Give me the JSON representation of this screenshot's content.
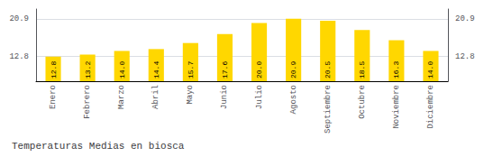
{
  "chart_data": {
    "type": "bar",
    "title": "Temperaturas Medias en biosca",
    "categories": [
      "Enero",
      "Febrero",
      "Marzo",
      "Abril",
      "Mayo",
      "Junio",
      "Julio",
      "Agosto",
      "Septiembre",
      "Octubre",
      "Noviembre",
      "Diciembre"
    ],
    "values": [
      12.8,
      13.2,
      14.0,
      14.4,
      15.7,
      17.6,
      20.0,
      20.9,
      20.5,
      18.5,
      16.3,
      14.0
    ],
    "value_labels": [
      "12.8",
      "13.2",
      "14.0",
      "14.4",
      "15.7",
      "17.6",
      "20.0",
      "20.9",
      "20.5",
      "18.5",
      "16.3",
      "14.0"
    ],
    "data_labels": true,
    "color": "#FFD700",
    "ylim": [
      7.5,
      23.0
    ],
    "yticks": [
      12.8,
      20.9
    ],
    "y2lim": [
      7.5,
      23.0
    ],
    "y2ticks": [
      12.8,
      20.9
    ],
    "grid": true
  }
}
